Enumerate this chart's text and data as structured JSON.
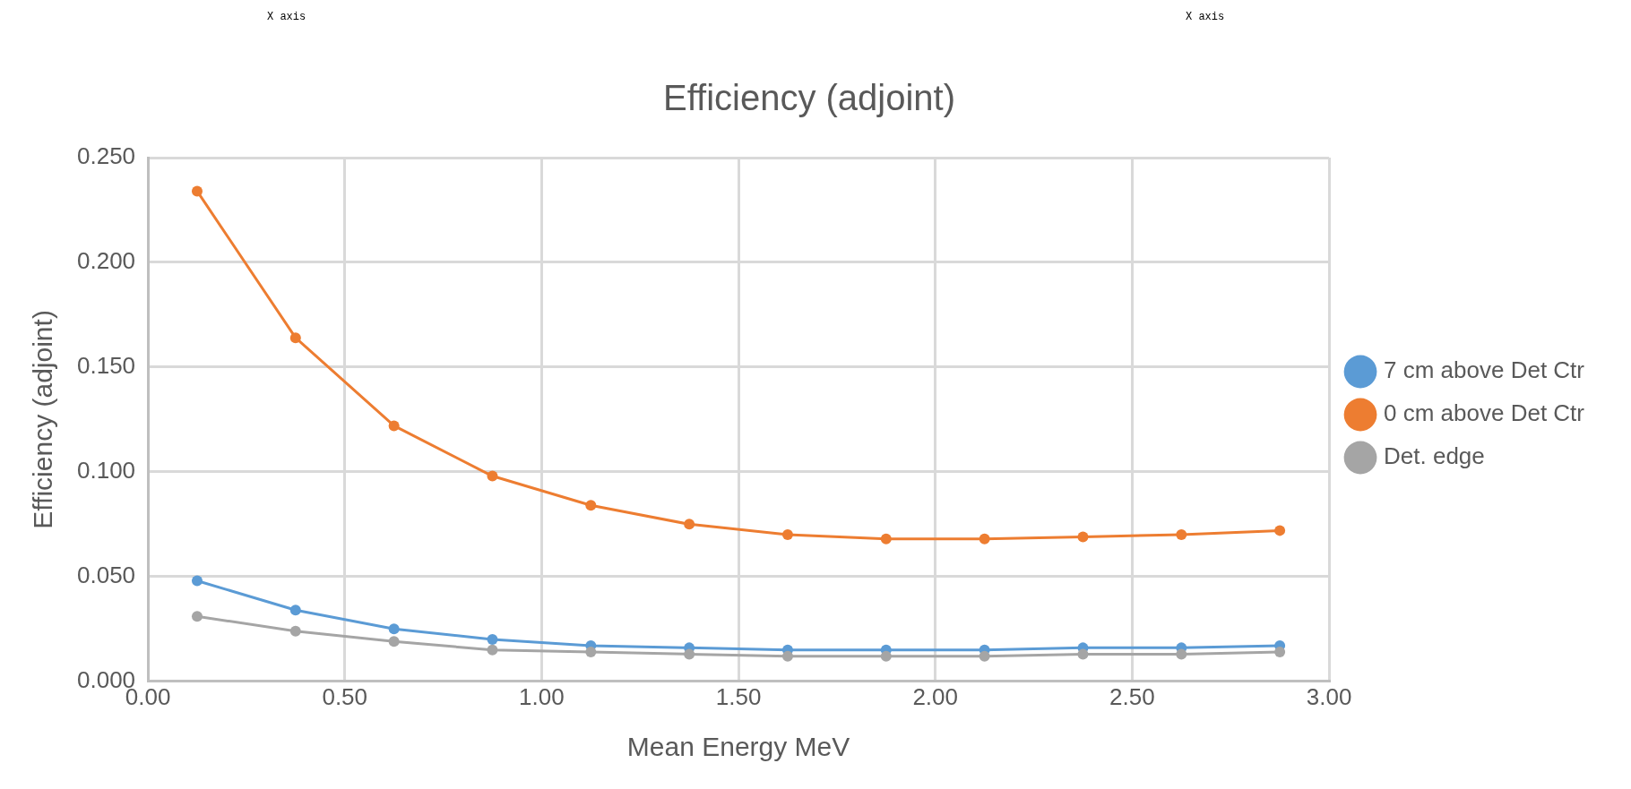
{
  "chart_data": {
    "type": "line",
    "title": "Efficiency (adjoint)",
    "xlabel": "Mean Energy MeV",
    "ylabel": "Efficiency (adjoint)",
    "annotations": [
      "X axis",
      "X axis"
    ],
    "x": [
      0.125,
      0.375,
      0.625,
      0.875,
      1.125,
      1.375,
      1.625,
      1.875,
      2.125,
      2.375,
      2.625,
      2.875
    ],
    "series": [
      {
        "name": "7 cm above Det Ctr",
        "color": "#5b9bd5",
        "values": [
          0.048,
          0.034,
          0.025,
          0.02,
          0.017,
          0.016,
          0.015,
          0.015,
          0.015,
          0.016,
          0.016,
          0.017
        ]
      },
      {
        "name": "0 cm above Det Ctr",
        "color": "#ed7d31",
        "values": [
          0.234,
          0.164,
          0.122,
          0.098,
          0.084,
          0.075,
          0.07,
          0.068,
          0.068,
          0.069,
          0.07,
          0.072
        ]
      },
      {
        "name": "Det. edge",
        "color": "#a5a5a5",
        "values": [
          0.031,
          0.024,
          0.019,
          0.015,
          0.014,
          0.013,
          0.012,
          0.012,
          0.012,
          0.013,
          0.013,
          0.014
        ]
      }
    ],
    "xlim": [
      0,
      3
    ],
    "xticks": [
      {
        "value": 0,
        "label": "0.00"
      },
      {
        "value": 0.5,
        "label": "0.50"
      },
      {
        "value": 1,
        "label": "1.00"
      },
      {
        "value": 1.5,
        "label": "1.50"
      },
      {
        "value": 2,
        "label": "2.00"
      },
      {
        "value": 2.5,
        "label": "2.50"
      },
      {
        "value": 3,
        "label": "3.00"
      }
    ],
    "ylim": [
      0,
      0.25
    ],
    "yticks": [
      {
        "value": 0,
        "label": "0.000"
      },
      {
        "value": 0.05,
        "label": "0.050"
      },
      {
        "value": 0.1,
        "label": "0.100"
      },
      {
        "value": 0.15,
        "label": "0.150"
      },
      {
        "value": 0.2,
        "label": "0.200"
      },
      {
        "value": 0.25,
        "label": "0.250"
      }
    ],
    "grid": true,
    "legend": "right",
    "marker": "circle",
    "line_style": "solid"
  }
}
